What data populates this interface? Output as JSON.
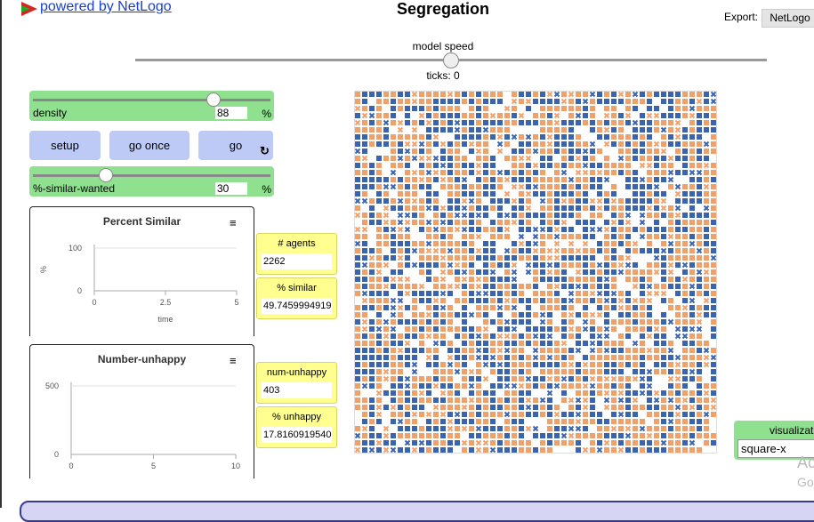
{
  "header": {
    "link": "powered by NetLogo",
    "title": "Segregation",
    "export_label": "Export:",
    "export_button": "NetLogo"
  },
  "speed": {
    "label": "model speed",
    "ticks": "ticks: 0"
  },
  "sliders": [
    {
      "name": "density",
      "value": 88,
      "unit": "%"
    },
    {
      "name": "%-similar-wanted",
      "value": 30,
      "unit": "%"
    }
  ],
  "buttons": [
    "setup",
    "go once",
    "go"
  ],
  "plots": [
    {
      "title": "Percent Similar",
      "y_label": "%",
      "x_label": "time",
      "yticks": [
        0,
        100
      ],
      "xticks": [
        0,
        2.5,
        5
      ]
    },
    {
      "title": "Number-unhappy",
      "yticks": [
        0,
        500
      ],
      "xticks": [
        0,
        5,
        10
      ]
    }
  ],
  "monitors": [
    {
      "label": "# agents",
      "value": "2262"
    },
    {
      "label": "% similar",
      "value": "49.74599949199"
    },
    {
      "label": "num-unhappy",
      "value": "403"
    },
    {
      "label": "% unhappy",
      "value": "17.81609195402"
    }
  ],
  "chooser": {
    "label": "visualization",
    "value": "square-x"
  },
  "watermark": [
    "Ac",
    "Go"
  ]
}
